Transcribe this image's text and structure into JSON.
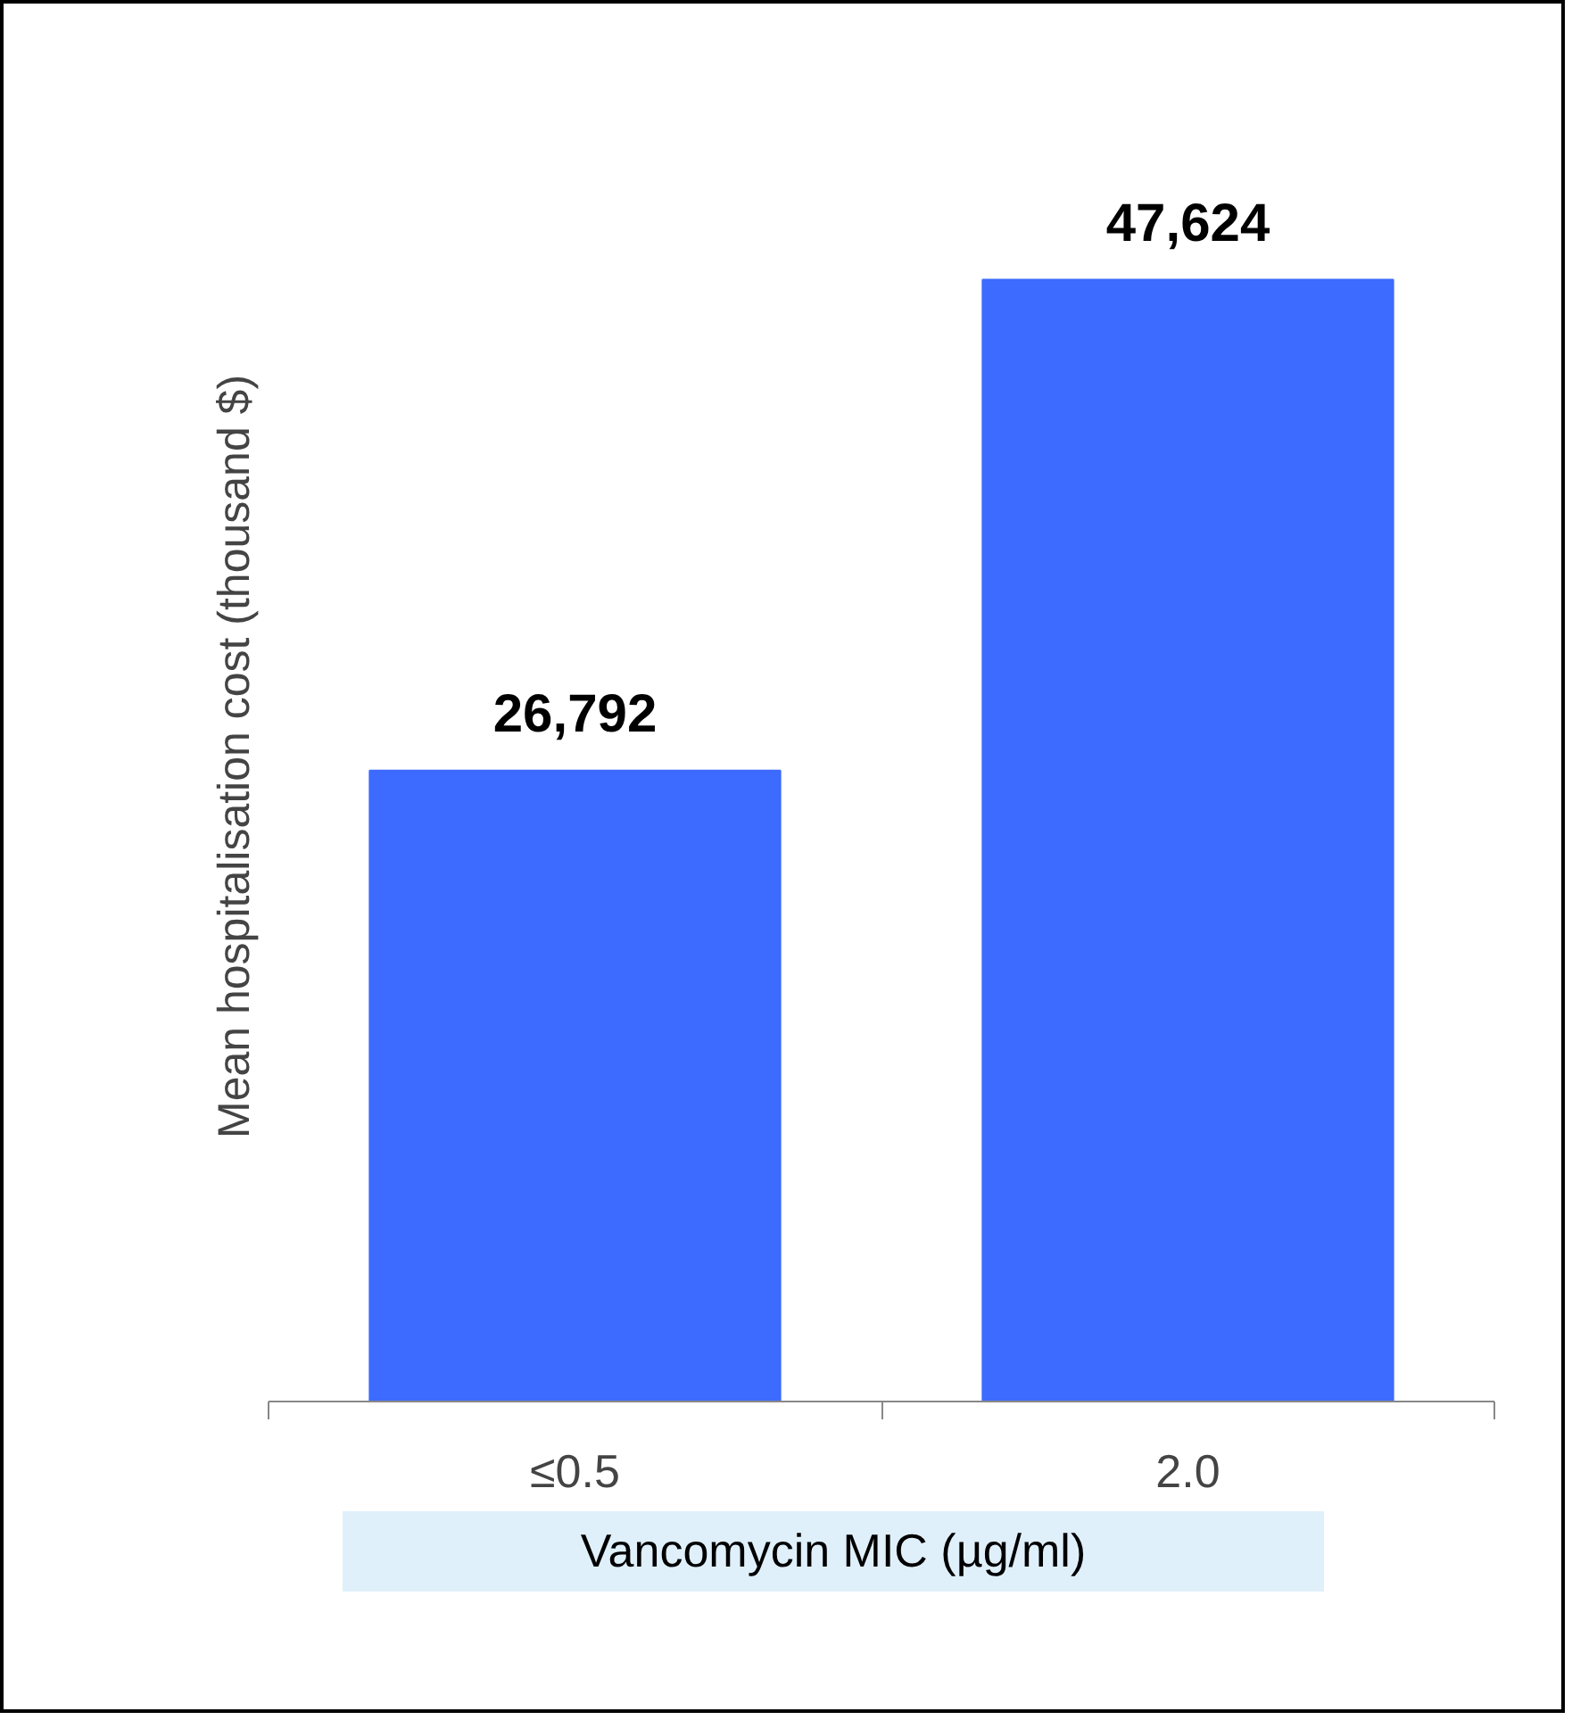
{
  "chart_data": {
    "type": "bar",
    "categories": [
      "≤0.5",
      "2.0"
    ],
    "values": [
      26792,
      47624
    ],
    "value_labels": [
      "26,792",
      "47,624"
    ],
    "color": "#3d6bff",
    "ylabel": "Mean hospitalisation cost (thousand $)",
    "xlabel": "Vancomycin MIC (µg/ml)"
  }
}
